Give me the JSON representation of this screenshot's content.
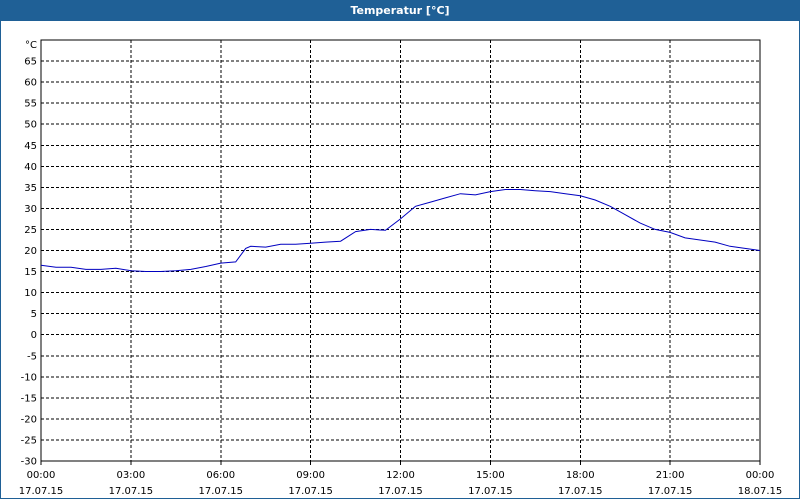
{
  "window": {
    "title": "Temperatur [°C]"
  },
  "colors": {
    "title_bar": "#1f6096",
    "line": "#0000c0",
    "grid": "#000000"
  },
  "chart_data": {
    "type": "line",
    "title": "Temperatur [°C]",
    "ylabel": "°C",
    "ylim": [
      -30,
      70
    ],
    "yticks": [
      -30,
      -25,
      -20,
      -15,
      -10,
      -5,
      0,
      5,
      10,
      15,
      20,
      25,
      30,
      35,
      40,
      45,
      50,
      55,
      60,
      65
    ],
    "xticks": [
      {
        "time": "00:00",
        "date": "17.07.15"
      },
      {
        "time": "03:00",
        "date": "17.07.15"
      },
      {
        "time": "06:00",
        "date": "17.07.15"
      },
      {
        "time": "09:00",
        "date": "17.07.15"
      },
      {
        "time": "12:00",
        "date": "17.07.15"
      },
      {
        "time": "15:00",
        "date": "17.07.15"
      },
      {
        "time": "18:00",
        "date": "17.07.15"
      },
      {
        "time": "21:00",
        "date": "17.07.15"
      },
      {
        "time": "00:00",
        "date": "18.07.15"
      }
    ],
    "grid": true,
    "series": [
      {
        "x": [
          "00:00",
          "00:30",
          "01:00",
          "01:30",
          "02:00",
          "02:30",
          "03:00",
          "03:30",
          "04:00",
          "04:30",
          "05:00",
          "05:30",
          "06:00",
          "06:30",
          "06:50",
          "07:00",
          "07:30",
          "08:00",
          "08:30",
          "09:00",
          "09:30",
          "10:00",
          "10:30",
          "11:00",
          "11:30",
          "12:00",
          "12:30",
          "13:00",
          "13:30",
          "14:00",
          "14:30",
          "15:00",
          "15:30",
          "16:00",
          "16:30",
          "17:00",
          "17:30",
          "18:00",
          "18:30",
          "19:00",
          "19:30",
          "20:00",
          "20:30",
          "21:00",
          "21:30",
          "22:00",
          "22:30",
          "23:00",
          "23:30",
          "00:00"
        ],
        "y": [
          16.5,
          16,
          16,
          15.5,
          15.5,
          15.8,
          15.2,
          15,
          15,
          15.2,
          15.5,
          16.2,
          17,
          17.3,
          20.5,
          21,
          20.8,
          21.5,
          21.5,
          21.7,
          22,
          22.2,
          24.5,
          25,
          24.8,
          27.5,
          30.5,
          31.5,
          32.5,
          33.5,
          33.2,
          34,
          34.5,
          34.5,
          34.2,
          34,
          33.5,
          33,
          32,
          30.5,
          28.5,
          26.5,
          25,
          24.3,
          23,
          22.5,
          22,
          21,
          20.5,
          20
        ]
      }
    ]
  }
}
